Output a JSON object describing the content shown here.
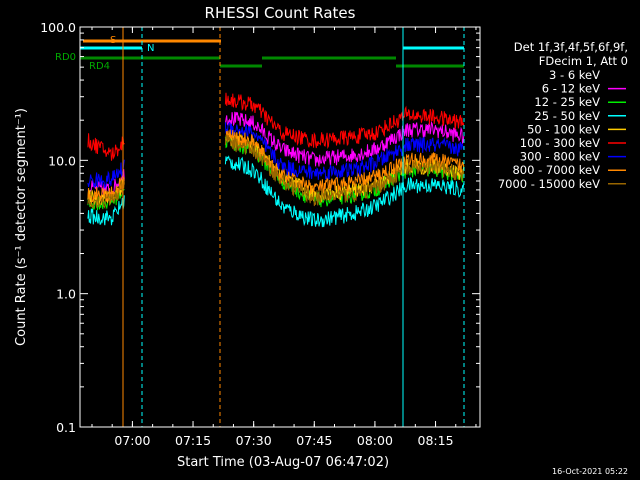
{
  "chart_data": {
    "type": "line",
    "title": "RHESSI Count Rates",
    "xlabel": "Start Time (03-Aug-07 06:47:02)",
    "ylabel": "Count Rate (s⁻¹ detector segment⁻¹)",
    "yscale": "log",
    "ylim": [
      0.1,
      100.0
    ],
    "xlim": [
      "06:47:02",
      "08:26:00"
    ],
    "x_ticks": [
      "07:00",
      "07:15",
      "07:30",
      "07:45",
      "08:00",
      "08:15"
    ],
    "y_ticks": [
      "0.1",
      "1.0",
      "10.0",
      "100.0"
    ],
    "grid": false,
    "legend_header": [
      "Det 1f,3f,4f,5f,6f,9f,",
      "FDecim 1, Att 0"
    ],
    "legend_placement": "right",
    "series": [
      {
        "name": "3 - 6 keV",
        "color": "#000000",
        "points": [
          [
            "06:49",
            4.5
          ],
          [
            "06:55",
            4.7
          ],
          [
            "06:58",
            6.0
          ],
          [
            "07:23",
            13.0
          ],
          [
            "07:30",
            11.0
          ],
          [
            "07:37",
            6.0
          ],
          [
            "07:45",
            4.5
          ],
          [
            "07:55",
            5.0
          ],
          [
            "08:00",
            5.5
          ],
          [
            "08:08",
            7.5
          ],
          [
            "08:15",
            8.0
          ],
          [
            "08:22",
            7.0
          ]
        ]
      },
      {
        "name": "6 - 12 keV",
        "color": "#ff00ff",
        "points": [
          [
            "06:49",
            6.2
          ],
          [
            "06:55",
            6.0
          ],
          [
            "06:58",
            8.0
          ],
          [
            "07:23",
            21.0
          ],
          [
            "07:30",
            19.0
          ],
          [
            "07:37",
            12.0
          ],
          [
            "07:45",
            10.0
          ],
          [
            "07:55",
            11.0
          ],
          [
            "08:00",
            12.0
          ],
          [
            "08:08",
            17.0
          ],
          [
            "08:15",
            17.0
          ],
          [
            "08:22",
            15.0
          ]
        ]
      },
      {
        "name": "12 - 25 keV",
        "color": "#00ee00",
        "points": [
          [
            "06:49",
            4.8
          ],
          [
            "06:55",
            4.9
          ],
          [
            "06:58",
            6.2
          ],
          [
            "07:23",
            14.0
          ],
          [
            "07:30",
            12.0
          ],
          [
            "07:37",
            7.0
          ],
          [
            "07:45",
            5.0
          ],
          [
            "07:55",
            5.5
          ],
          [
            "08:00",
            6.0
          ],
          [
            "08:08",
            8.5
          ],
          [
            "08:15",
            8.5
          ],
          [
            "08:22",
            7.5
          ]
        ]
      },
      {
        "name": "25 - 50 keV",
        "color": "#00ffff",
        "points": [
          [
            "06:49",
            3.8
          ],
          [
            "06:55",
            3.7
          ],
          [
            "06:58",
            5.0
          ],
          [
            "07:23",
            10.0
          ],
          [
            "07:30",
            8.5
          ],
          [
            "07:37",
            4.5
          ],
          [
            "07:45",
            3.5
          ],
          [
            "07:55",
            4.0
          ],
          [
            "08:00",
            4.5
          ],
          [
            "08:08",
            6.5
          ],
          [
            "08:15",
            6.5
          ],
          [
            "08:22",
            6.0
          ]
        ]
      },
      {
        "name": "50 - 100 keV",
        "color": "#ffcc00",
        "points": [
          [
            "06:49",
            5.3
          ],
          [
            "06:55",
            5.2
          ],
          [
            "06:58",
            6.8
          ],
          [
            "07:23",
            15.0
          ],
          [
            "07:30",
            13.0
          ],
          [
            "07:37",
            7.5
          ],
          [
            "07:45",
            5.5
          ],
          [
            "07:55",
            6.0
          ],
          [
            "08:00",
            6.5
          ],
          [
            "08:08",
            9.0
          ],
          [
            "08:15",
            9.0
          ],
          [
            "08:22",
            8.0
          ]
        ]
      },
      {
        "name": "100 - 300 keV",
        "color": "#ff0000",
        "points": [
          [
            "06:49",
            14.0
          ],
          [
            "06:55",
            11.0
          ],
          [
            "06:58",
            14.0
          ],
          [
            "07:23",
            29.0
          ],
          [
            "07:30",
            26.0
          ],
          [
            "07:37",
            16.0
          ],
          [
            "07:45",
            14.0
          ],
          [
            "07:55",
            15.0
          ],
          [
            "08:00",
            16.0
          ],
          [
            "08:08",
            22.0
          ],
          [
            "08:15",
            21.0
          ],
          [
            "08:22",
            19.0
          ]
        ]
      },
      {
        "name": "300 - 800 keV",
        "color": "#0000ff",
        "points": [
          [
            "06:49",
            7.0
          ],
          [
            "06:55",
            7.2
          ],
          [
            "06:58",
            9.0
          ],
          [
            "07:23",
            18.0
          ],
          [
            "07:30",
            16.0
          ],
          [
            "07:37",
            9.0
          ],
          [
            "07:45",
            8.0
          ],
          [
            "07:55",
            8.5
          ],
          [
            "08:00",
            9.5
          ],
          [
            "08:08",
            13.0
          ],
          [
            "08:15",
            13.0
          ],
          [
            "08:22",
            12.0
          ]
        ]
      },
      {
        "name": "800 - 7000 keV",
        "color": "#ff8800",
        "points": [
          [
            "06:49",
            5.6
          ],
          [
            "06:55",
            5.6
          ],
          [
            "06:58",
            7.2
          ],
          [
            "07:23",
            15.5
          ],
          [
            "07:30",
            13.5
          ],
          [
            "07:37",
            7.5
          ],
          [
            "07:45",
            6.2
          ],
          [
            "07:55",
            6.8
          ],
          [
            "08:00",
            7.5
          ],
          [
            "08:08",
            10.0
          ],
          [
            "08:15",
            10.0
          ],
          [
            "08:22",
            9.0
          ]
        ]
      },
      {
        "name": "7000 - 15000 keV",
        "color": "#996600",
        "points": [
          [
            "06:49",
            5.0
          ],
          [
            "06:55",
            5.0
          ],
          [
            "06:58",
            6.5
          ],
          [
            "07:23",
            14.0
          ],
          [
            "07:30",
            12.0
          ],
          [
            "07:37",
            7.0
          ],
          [
            "07:45",
            5.2
          ],
          [
            "07:55",
            5.6
          ],
          [
            "08:00",
            6.2
          ],
          [
            "08:08",
            8.6
          ],
          [
            "08:15",
            8.8
          ],
          [
            "08:22",
            7.8
          ]
        ]
      }
    ],
    "annotations": {
      "rd0_label": "RD0",
      "rd4_label": "RD4",
      "s_label": "S",
      "n_label": "N"
    },
    "colors": {
      "background": "#000000",
      "axes": "#ffffff",
      "saa_bar": "#ff8800",
      "night_bar": "#00ffff",
      "decimation_bar": "#008800",
      "decimation_label": "#00aa00"
    }
  },
  "footer": {
    "timestamp": "16-Oct-2021 05:22"
  }
}
